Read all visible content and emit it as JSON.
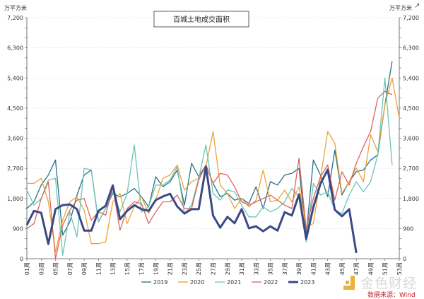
{
  "chart_data": {
    "type": "line",
    "title": "百城土地成交面积",
    "ylabel_left": "万平方米",
    "ylabel_right": "万平方米",
    "ylim": [
      0,
      7200
    ],
    "yticks": [
      "0",
      "900",
      "1,800",
      "2,700",
      "3,600",
      "4,500",
      "5,400",
      "6,300",
      "7,200"
    ],
    "ytick_values": [
      0,
      900,
      1800,
      2700,
      3600,
      4500,
      5400,
      6300,
      7200
    ],
    "x_categories_count": 53,
    "xtick_labels": [
      "01周",
      "03周",
      "05周",
      "07周",
      "09周",
      "11周",
      "13周",
      "15周",
      "17周",
      "19周",
      "21周",
      "23周",
      "25周",
      "27周",
      "29周",
      "31周",
      "33周",
      "35周",
      "37周",
      "39周",
      "41周",
      "43周",
      "45周",
      "47周",
      "49周",
      "51周",
      "53周"
    ],
    "grid": "horizontal dashed",
    "legend": "bottom",
    "series": [
      {
        "name": "2019",
        "color": "#2a6f86",
        "width": 1.3,
        "values": [
          1500,
          1700,
          2200,
          2500,
          2950,
          700,
          1100,
          1900,
          2500,
          2650,
          1100,
          1500,
          1950,
          1850,
          1950,
          2100,
          1850,
          1550,
          2450,
          2150,
          2300,
          2650,
          1600,
          2850,
          2450,
          2800,
          2250,
          1850,
          1950,
          1750,
          1800,
          1650,
          2150,
          1500,
          2300,
          2200,
          2500,
          2550,
          2700,
          700,
          2950,
          2500,
          1850,
          3250,
          1900,
          2300,
          2600,
          2650,
          2950,
          3100,
          4600,
          5900
        ]
      },
      {
        "name": "2020",
        "color": "#eba43a",
        "width": 1.3,
        "values": [
          2250,
          2250,
          2400,
          1700,
          200,
          1150,
          1700,
          1850,
          1450,
          450,
          450,
          500,
          1700,
          1950,
          1050,
          1550,
          1850,
          1350,
          1750,
          2400,
          2500,
          2800,
          2050,
          2300,
          2400,
          2750,
          3800,
          2200,
          1950,
          1500,
          1800,
          1550,
          1750,
          2650,
          1700,
          1750,
          2050,
          1700,
          2150,
          950,
          1050,
          2400,
          3800,
          3450,
          1950,
          2300,
          2700,
          2300,
          3700,
          3200,
          4600,
          5400,
          4200
        ]
      },
      {
        "name": "2021",
        "color": "#6cc5b5",
        "width": 1.3,
        "values": [
          2050,
          1600,
          1800,
          2350,
          2400,
          100,
          1400,
          650,
          2700,
          2650,
          1100,
          1500,
          2000,
          1400,
          1950,
          3400,
          1400,
          1550,
          2200,
          2200,
          2350,
          2750,
          1350,
          1600,
          2400,
          3400,
          1950,
          1750,
          2050,
          2000,
          1600,
          1250,
          1250,
          1550,
          1400,
          1500,
          1700,
          2100,
          1850,
          500,
          2250,
          1900,
          2000,
          1450,
          1350,
          1900,
          2300,
          2000,
          2300,
          3100,
          5400,
          2800
        ]
      },
      {
        "name": "2022",
        "color": "#d9655a",
        "width": 1.3,
        "values": [
          900,
          1050,
          1800,
          2300,
          0,
          1000,
          1450,
          1750,
          1800,
          1150,
          1400,
          1300,
          2150,
          850,
          1500,
          1700,
          1650,
          1050,
          1400,
          1700,
          1700,
          1900,
          1500,
          1500,
          2350,
          2800,
          2250,
          2550,
          2500,
          2150,
          1700,
          1600,
          1700,
          1800,
          1900,
          1750,
          1600,
          1500,
          3000,
          900,
          1800,
          2450,
          2800,
          1750,
          2600,
          2200,
          2850,
          3350,
          3800,
          4800,
          5000,
          4900
        ]
      },
      {
        "name": "2023",
        "color": "#3b4a86",
        "width": 3,
        "values": [
          1010,
          1430,
          1370,
          440,
          1480,
          1600,
          1620,
          1480,
          840,
          840,
          1430,
          1580,
          2190,
          1180,
          1430,
          1600,
          1480,
          1430,
          1750,
          1860,
          1940,
          1560,
          1350,
          1480,
          1480,
          2740,
          1290,
          930,
          1250,
          1060,
          1480,
          910,
          970,
          820,
          970,
          840,
          1390,
          1290,
          1920,
          590,
          1540,
          2240,
          2660,
          1460,
          1270,
          1480,
          170
        ]
      }
    ]
  },
  "watermark": {
    "name": "金色财经",
    "source": "数据来源：Wind"
  },
  "toolbar": {
    "external_icon": "external-link-icon"
  }
}
